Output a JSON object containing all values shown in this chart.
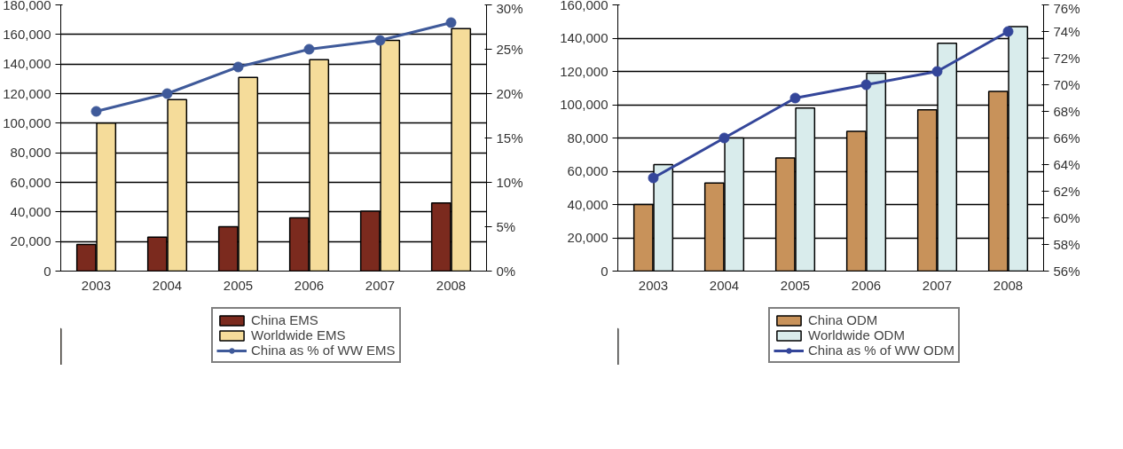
{
  "chart_data": [
    {
      "type": "bar",
      "categories": [
        "2003",
        "2004",
        "2005",
        "2006",
        "2007",
        "2008"
      ],
      "series": [
        {
          "name": "China EMS",
          "color": "#7b2a1e",
          "values": [
            18000,
            23000,
            30000,
            36000,
            40500,
            46000
          ]
        },
        {
          "name": "Worldwide EMS",
          "color": "#f5dc9a",
          "values": [
            100000,
            116000,
            131000,
            143000,
            156000,
            164000
          ]
        },
        {
          "name": "China as % of WW EMS",
          "type": "line",
          "axis": "y2",
          "color": "#3f5a9a",
          "values": [
            18,
            20,
            23,
            25,
            26,
            28
          ]
        }
      ],
      "ylim": [
        0,
        180000
      ],
      "yticks": [
        {
          "value": 0,
          "label": "0"
        },
        {
          "value": 20000,
          "label": "20,000"
        },
        {
          "value": 40000,
          "label": "40,000"
        },
        {
          "value": 60000,
          "label": "60,000"
        },
        {
          "value": 80000,
          "label": "80,000"
        },
        {
          "value": 100000,
          "label": "100,000"
        },
        {
          "value": 120000,
          "label": "120,000"
        },
        {
          "value": 140000,
          "label": "140,000"
        },
        {
          "value": 160000,
          "label": "160,000"
        },
        {
          "value": 180000,
          "label": "180,000"
        }
      ],
      "y2lim": [
        0,
        30
      ],
      "y2ticks": [
        {
          "value": 0,
          "label": "0%"
        },
        {
          "value": 5,
          "label": "5%"
        },
        {
          "value": 10,
          "label": "10%"
        },
        {
          "value": 15,
          "label": "15%"
        },
        {
          "value": 20,
          "label": "20%"
        },
        {
          "value": 25,
          "label": "25%"
        },
        {
          "value": 30,
          "label": "30%"
        }
      ],
      "grid": "y",
      "legend": "bottom",
      "marker": "circle"
    },
    {
      "type": "bar",
      "categories": [
        "2003",
        "2004",
        "2005",
        "2006",
        "2007",
        "2008"
      ],
      "series": [
        {
          "name": "China ODM",
          "color": "#c8925a",
          "values": [
            40000,
            53000,
            68000,
            84000,
            97000,
            108000
          ]
        },
        {
          "name": "Worldwide ODM",
          "color": "#d9ecec",
          "values": [
            64000,
            80000,
            98000,
            119000,
            137000,
            147000
          ]
        },
        {
          "name": "China as % of WW ODM",
          "type": "line",
          "axis": "y2",
          "color": "#34469a",
          "values": [
            63,
            66,
            69,
            70,
            71,
            74
          ]
        }
      ],
      "ylim": [
        0,
        160000
      ],
      "yticks": [
        {
          "value": 0,
          "label": "0"
        },
        {
          "value": 20000,
          "label": "20,000"
        },
        {
          "value": 40000,
          "label": "40,000"
        },
        {
          "value": 60000,
          "label": "60,000"
        },
        {
          "value": 80000,
          "label": "80,000"
        },
        {
          "value": 100000,
          "label": "100,000"
        },
        {
          "value": 120000,
          "label": "120,000"
        },
        {
          "value": 140000,
          "label": "140,000"
        },
        {
          "value": 160000,
          "label": "160,000"
        }
      ],
      "y2lim": [
        56,
        76
      ],
      "y2ticks": [
        {
          "value": 56,
          "label": "56%"
        },
        {
          "value": 58,
          "label": "58%"
        },
        {
          "value": 60,
          "label": "60%"
        },
        {
          "value": 62,
          "label": "62%"
        },
        {
          "value": 64,
          "label": "64%"
        },
        {
          "value": 66,
          "label": "66%"
        },
        {
          "value": 68,
          "label": "68%"
        },
        {
          "value": 70,
          "label": "70%"
        },
        {
          "value": 72,
          "label": "72%"
        },
        {
          "value": 74,
          "label": "74%"
        },
        {
          "value": 76,
          "label": "76%"
        }
      ],
      "grid": "y",
      "legend": "bottom",
      "marker": "circle"
    }
  ]
}
